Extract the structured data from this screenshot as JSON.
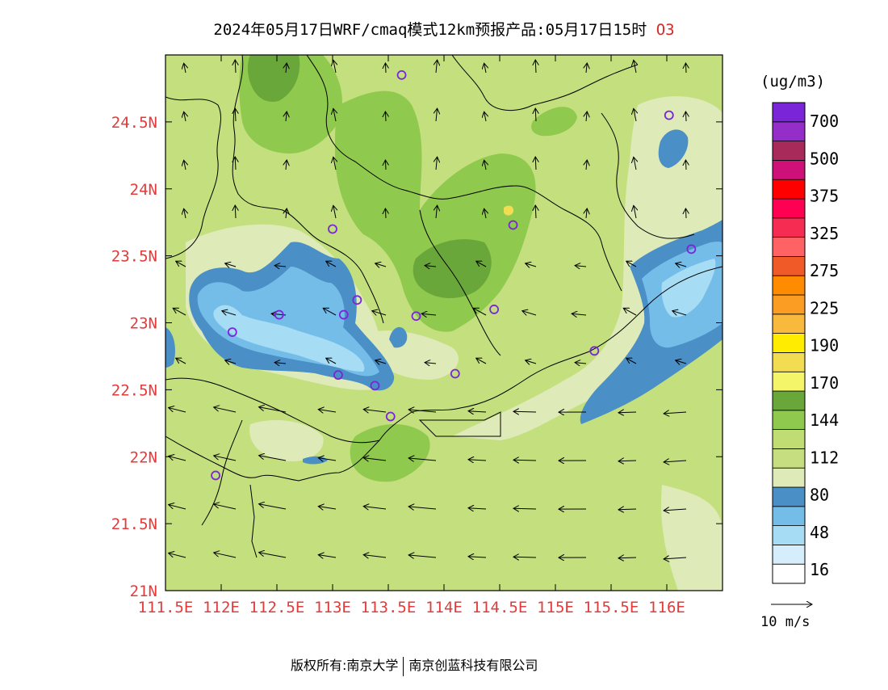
{
  "title": {
    "main": "2024年05月17日WRF/cmaq模式12km预报产品:05月17日15时",
    "species": "O3"
  },
  "map": {
    "lon_range": [
      111.5,
      116.5
    ],
    "lat_range": [
      21.0,
      25.0
    ],
    "lat_ticks": [
      {
        "value": 24.5,
        "label": "24.5N"
      },
      {
        "value": 24.0,
        "label": "24N"
      },
      {
        "value": 23.5,
        "label": "23.5N"
      },
      {
        "value": 23.0,
        "label": "23N"
      },
      {
        "value": 22.5,
        "label": "22.5N"
      },
      {
        "value": 22.0,
        "label": "22N"
      },
      {
        "value": 21.5,
        "label": "21.5N"
      },
      {
        "value": 21.0,
        "label": "21N"
      }
    ],
    "lon_ticks": [
      {
        "value": 111.5,
        "label": "111.5E"
      },
      {
        "value": 112.0,
        "label": "112E"
      },
      {
        "value": 112.5,
        "label": "112.5E"
      },
      {
        "value": 113.0,
        "label": "113E"
      },
      {
        "value": 113.5,
        "label": "113.5E"
      },
      {
        "value": 114.0,
        "label": "114E"
      },
      {
        "value": 114.5,
        "label": "114.5E"
      },
      {
        "value": 115.0,
        "label": "115E"
      },
      {
        "value": 115.5,
        "label": "115.5E"
      },
      {
        "value": 116.0,
        "label": "116E"
      }
    ],
    "tick_color": "#e23b3b",
    "background_color": "#c4df7e",
    "stations": [
      {
        "lon": 113.62,
        "lat": 24.85
      },
      {
        "lon": 116.02,
        "lat": 24.55
      },
      {
        "lon": 113.0,
        "lat": 23.7
      },
      {
        "lon": 114.62,
        "lat": 23.73
      },
      {
        "lon": 116.22,
        "lat": 23.55
      },
      {
        "lon": 113.22,
        "lat": 23.17
      },
      {
        "lon": 112.52,
        "lat": 23.06
      },
      {
        "lon": 113.1,
        "lat": 23.06
      },
      {
        "lon": 113.75,
        "lat": 23.05
      },
      {
        "lon": 114.45,
        "lat": 23.1
      },
      {
        "lon": 112.1,
        "lat": 22.93
      },
      {
        "lon": 115.35,
        "lat": 22.79
      },
      {
        "lon": 114.1,
        "lat": 22.62
      },
      {
        "lon": 113.05,
        "lat": 22.61
      },
      {
        "lon": 113.38,
        "lat": 22.53
      },
      {
        "lon": 113.52,
        "lat": 22.3
      },
      {
        "lon": 111.95,
        "lat": 21.86
      }
    ]
  },
  "legend": {
    "units": "(ug/m3)",
    "bins": [
      {
        "color": "#ffffff"
      },
      {
        "color": "#d6eefb",
        "label": "16"
      },
      {
        "color": "#a6dcf4"
      },
      {
        "color": "#75bde9",
        "label": "48"
      },
      {
        "color": "#4a8fc6"
      },
      {
        "color": "#dfeab9",
        "label": "80"
      },
      {
        "color": "#c6de80"
      },
      {
        "color": "#c0dd74",
        "label": "112"
      },
      {
        "color": "#8fc94d"
      },
      {
        "color": "#6aa73a",
        "label": "144"
      },
      {
        "color": "#f5f56a"
      },
      {
        "color": "#f2dc52",
        "label": "170"
      },
      {
        "color": "#ffec00"
      },
      {
        "color": "#f9b93d",
        "label": "190"
      },
      {
        "color": "#fb9c23"
      },
      {
        "color": "#ff8b00",
        "label": "225"
      },
      {
        "color": "#f05a28"
      },
      {
        "color": "#ff6265",
        "label": "275"
      },
      {
        "color": "#f72c52"
      },
      {
        "color": "#ff0053",
        "label": "325"
      },
      {
        "color": "#ff0000"
      },
      {
        "color": "#cd1179",
        "label": "375"
      },
      {
        "color": "#a82a5a"
      },
      {
        "color": "#952dc9",
        "label": "500"
      },
      {
        "color": "#7a25d8",
        "label": "700"
      }
    ],
    "labels": [
      "700",
      "500",
      "375",
      "325",
      "275",
      "225",
      "190",
      "170",
      "144",
      "112",
      "80",
      "48",
      "16"
    ]
  },
  "wind_reference": {
    "label": "10 m/s"
  },
  "footer": {
    "left": "版权所有:南京大学",
    "right": "南京创蓝科技有限公司"
  }
}
